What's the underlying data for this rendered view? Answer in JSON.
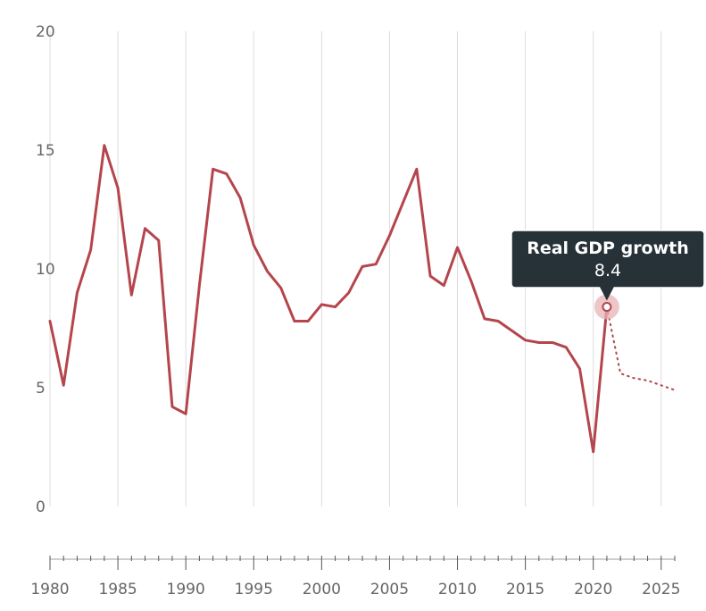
{
  "chart_data": {
    "type": "line",
    "x": [
      1980,
      1981,
      1982,
      1983,
      1984,
      1985,
      1986,
      1987,
      1988,
      1989,
      1990,
      1991,
      1992,
      1993,
      1994,
      1995,
      1996,
      1997,
      1998,
      1999,
      2000,
      2001,
      2002,
      2003,
      2004,
      2005,
      2006,
      2007,
      2008,
      2009,
      2010,
      2011,
      2012,
      2013,
      2014,
      2015,
      2016,
      2017,
      2018,
      2019,
      2020,
      2021,
      2022,
      2023,
      2024,
      2025,
      2026
    ],
    "series": [
      {
        "color": "#b5454c",
        "style": "solid",
        "x": [
          1980,
          1981,
          1982,
          1983,
          1984,
          1985,
          1986,
          1987,
          1988,
          1989,
          1990,
          1991,
          1992,
          1993,
          1994,
          1995,
          1996,
          1997,
          1998,
          1999,
          2000,
          2001,
          2002,
          2003,
          2004,
          2005,
          2006,
          2007,
          2008,
          2009,
          2010,
          2011,
          2012,
          2013,
          2014,
          2015,
          2016,
          2017,
          2018,
          2019,
          2020,
          2021
        ],
        "values": [
          7.8,
          5.1,
          9.0,
          10.8,
          15.2,
          13.4,
          8.9,
          11.7,
          11.2,
          4.2,
          3.9,
          9.3,
          14.2,
          14.0,
          13.0,
          11.0,
          9.9,
          9.2,
          7.8,
          7.8,
          8.5,
          8.4,
          9.0,
          10.1,
          10.2,
          11.4,
          12.8,
          14.2,
          9.7,
          9.3,
          10.9,
          9.5,
          7.9,
          7.8,
          7.4,
          7.0,
          6.9,
          6.9,
          6.7,
          5.8,
          2.3,
          8.4
        ]
      },
      {
        "color": "#b5454c",
        "style": "dotted",
        "x": [
          2021,
          2022,
          2023,
          2024,
          2025,
          2026
        ],
        "values": [
          8.4,
          5.6,
          5.4,
          5.3,
          5.1,
          4.9
        ]
      }
    ],
    "y_ticks": [
      "0",
      "5",
      "10",
      "15",
      "20"
    ],
    "x_tick_labels": [
      "1980",
      "1985",
      "1990",
      "1995",
      "2000",
      "2005",
      "2010",
      "2015",
      "2020",
      "2025"
    ],
    "xlim": [
      1980,
      2026
    ],
    "ylim": [
      0,
      20
    ],
    "grid": "vertical",
    "tooltip": {
      "title": "Real GDP growth",
      "value": "8.4",
      "year": 2021,
      "bg_color": "#263238"
    }
  }
}
